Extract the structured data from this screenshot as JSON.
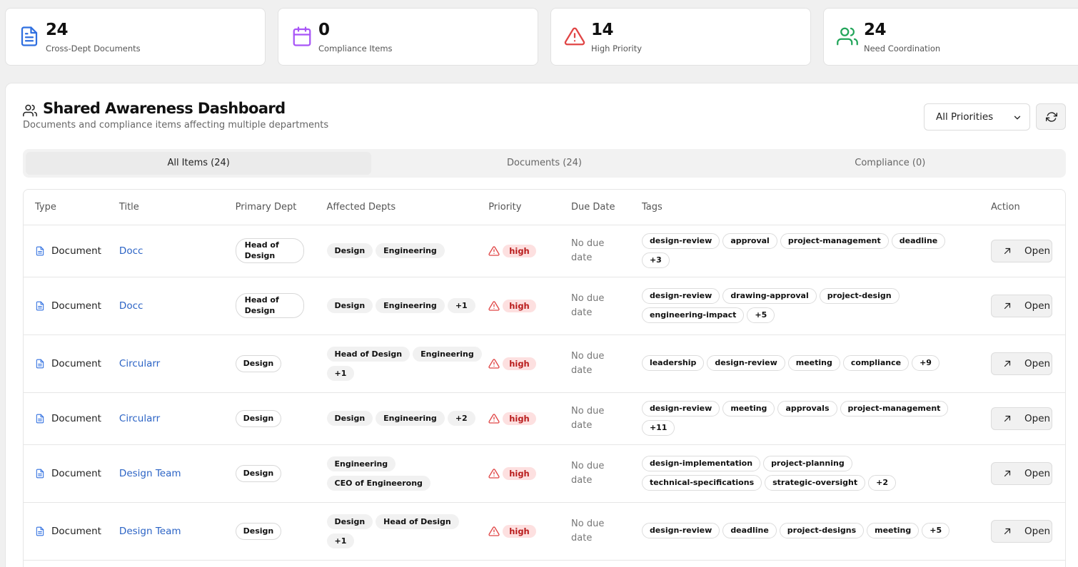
{
  "stats": [
    {
      "icon": "document-icon",
      "value": "24",
      "label": "Cross-Dept Documents",
      "color": "#2f6fe0"
    },
    {
      "icon": "calendar-icon",
      "value": "0",
      "label": "Compliance Items",
      "color": "#a855f7"
    },
    {
      "icon": "alert-triangle-icon",
      "value": "14",
      "label": "High Priority",
      "color": "#e04545"
    },
    {
      "icon": "users-icon",
      "value": "24",
      "label": "Need Coordination",
      "color": "#22a55a"
    }
  ],
  "dashboard": {
    "title": "Shared Awareness Dashboard",
    "subtitle": "Documents and compliance items affecting multiple departments",
    "priority_filter": "All Priorities"
  },
  "tabs": [
    "All Items (24)",
    "Documents (24)",
    "Compliance (0)"
  ],
  "table": {
    "headers": [
      "Type",
      "Title",
      "Primary Dept",
      "Affected Depts",
      "Priority",
      "Due Date",
      "Tags",
      "Action"
    ],
    "rows": [
      {
        "type": "Document",
        "title": "Docc",
        "primary": "Head of Design",
        "affected": [
          "Design",
          "Engineering"
        ],
        "priority": "high",
        "due": "No due date",
        "tags": [
          "design-review",
          "approval",
          "project-management",
          "deadline",
          "+3"
        ],
        "action": "Open"
      },
      {
        "type": "Document",
        "title": "Docc",
        "primary": "Head of Design",
        "affected": [
          "Design",
          "Engineering",
          "+1"
        ],
        "priority": "high",
        "due": "No due date",
        "tags": [
          "design-review",
          "drawing-approval",
          "project-design",
          "engineering-impact",
          "+5"
        ],
        "action": "Open"
      },
      {
        "type": "Document",
        "title": "Circularr",
        "primary": "Design",
        "affected": [
          "Head of Design",
          "Engineering",
          "+1"
        ],
        "priority": "high",
        "due": "No due date",
        "tags": [
          "leadership",
          "design-review",
          "meeting",
          "compliance",
          "+9"
        ],
        "action": "Open"
      },
      {
        "type": "Document",
        "title": "Circularr",
        "primary": "Design",
        "affected": [
          "Design",
          "Engineering",
          "+2"
        ],
        "priority": "high",
        "due": "No due date",
        "tags": [
          "design-review",
          "meeting",
          "approvals",
          "project-management",
          "+11"
        ],
        "action": "Open"
      },
      {
        "type": "Document",
        "title": "Design Team",
        "primary": "Design",
        "affected": [
          "Engineering",
          "CEO of Engineerong"
        ],
        "priority": "high",
        "due": "No due date",
        "tags": [
          "design-implementation",
          "project-planning",
          "technical-specifications",
          "strategic-oversight",
          "+2"
        ],
        "action": "Open"
      },
      {
        "type": "Document",
        "title": "Design Team",
        "primary": "Design",
        "affected": [
          "Design",
          "Head of Design",
          "+1"
        ],
        "priority": "high",
        "due": "No due date",
        "tags": [
          "design-review",
          "deadline",
          "project-designs",
          "meeting",
          "+5"
        ],
        "action": "Open"
      }
    ]
  }
}
